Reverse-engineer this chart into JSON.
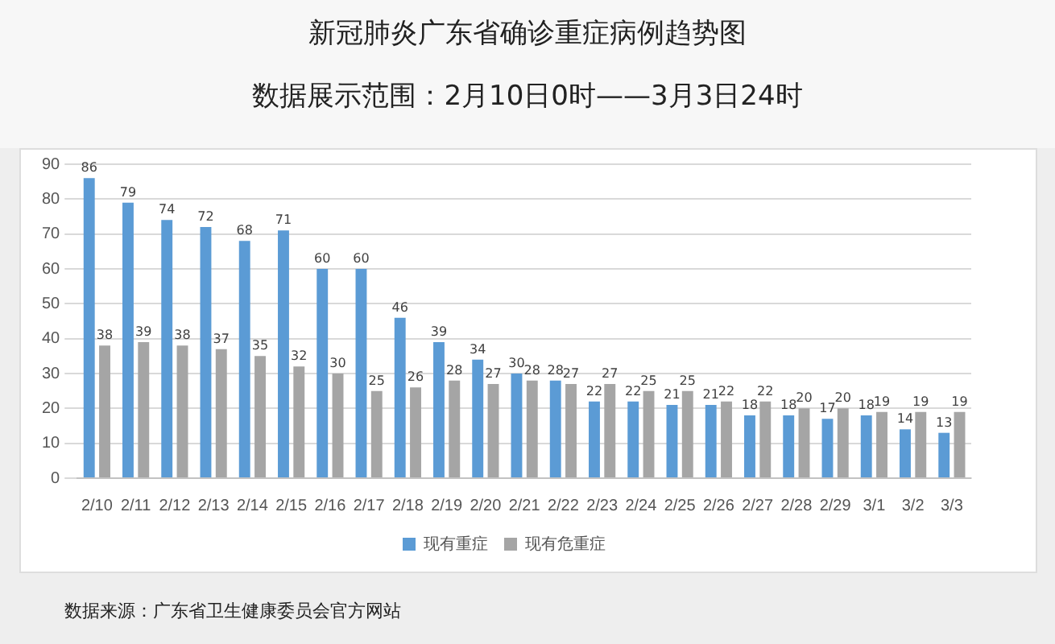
{
  "chart_data": {
    "type": "bar",
    "title": "新冠肺炎广东省确诊重症病例趋势图",
    "subtitle": "数据展示范围：2月10日0时——3月3日24时",
    "categories": [
      "2/10",
      "2/11",
      "2/12",
      "2/13",
      "2/14",
      "2/15",
      "2/16",
      "2/17",
      "2/18",
      "2/19",
      "2/20",
      "2/21",
      "2/22",
      "2/23",
      "2/24",
      "2/25",
      "2/26",
      "2/27",
      "2/28",
      "2/29",
      "3/1",
      "3/2",
      "3/3"
    ],
    "series": [
      {
        "name": "现有重症",
        "color": "#5b9bd5",
        "values": [
          86,
          79,
          74,
          72,
          68,
          71,
          60,
          60,
          46,
          39,
          34,
          30,
          28,
          22,
          22,
          21,
          21,
          18,
          18,
          17,
          18,
          14,
          13
        ]
      },
      {
        "name": "现有危重症",
        "color": "#a5a5a5",
        "values": [
          38,
          39,
          38,
          37,
          35,
          32,
          30,
          25,
          26,
          28,
          27,
          28,
          27,
          27,
          25,
          25,
          22,
          22,
          20,
          20,
          19,
          19,
          19
        ]
      }
    ],
    "ylim": [
      0,
      90
    ],
    "yticks": [
      0,
      10,
      20,
      30,
      40,
      50,
      60,
      70,
      80,
      90
    ],
    "grid": "y",
    "legend": "bottom",
    "data_labels": true,
    "annotations": [
      "数据来源：广东省卫生健康委员会官方网站"
    ]
  }
}
